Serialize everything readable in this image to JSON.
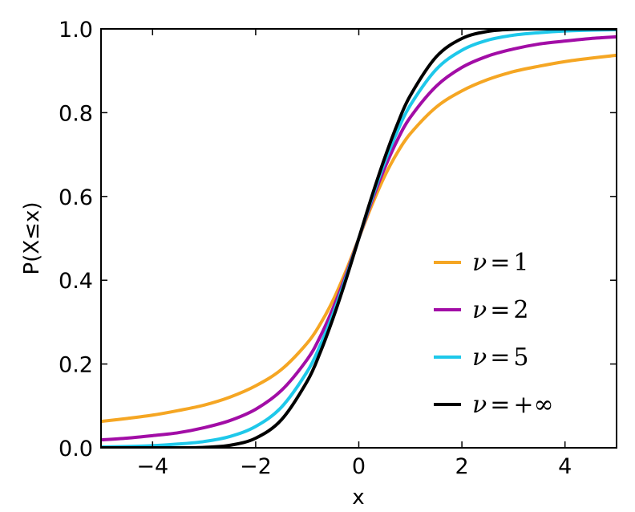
{
  "chart_data": {
    "type": "line",
    "title": "",
    "xlabel": "x",
    "ylabel": "P(X≤x)",
    "xlim": [
      -5,
      5
    ],
    "ylim": [
      0,
      1
    ],
    "xticks": [
      -4,
      -2,
      0,
      2,
      4
    ],
    "xtick_labels": [
      "−4",
      "−2",
      "0",
      "2",
      "4"
    ],
    "yticks": [
      0,
      0.2,
      0.4,
      0.6,
      0.8,
      1
    ],
    "ytick_labels": [
      "0.0",
      "0.2",
      "0.4",
      "0.6",
      "0.8",
      "1.0"
    ],
    "grid": false,
    "legend_position": "lower-right",
    "x": [
      -5,
      -4.5,
      -4,
      -3.5,
      -3,
      -2.5,
      -2,
      -1.5,
      -1,
      -0.75,
      -0.5,
      -0.25,
      0,
      0.25,
      0.5,
      0.75,
      1,
      1.5,
      2,
      2.5,
      3,
      3.5,
      4,
      4.5,
      5
    ],
    "series": [
      {
        "name": "ν = 1",
        "legend_var": "ν",
        "legend_op": "=",
        "legend_value": "1",
        "color": "#f5a623",
        "values": [
          0.063,
          0.07,
          0.078,
          0.089,
          0.102,
          0.121,
          0.148,
          0.187,
          0.25,
          0.295,
          0.352,
          0.422,
          0.5,
          0.578,
          0.648,
          0.705,
          0.75,
          0.813,
          0.852,
          0.879,
          0.898,
          0.911,
          0.922,
          0.93,
          0.937
        ]
      },
      {
        "name": "ν = 2",
        "legend_var": "ν",
        "legend_op": "=",
        "legend_value": "2",
        "color": "#a20da6",
        "values": [
          0.019,
          0.023,
          0.029,
          0.036,
          0.048,
          0.065,
          0.092,
          0.137,
          0.211,
          0.265,
          0.333,
          0.412,
          0.5,
          0.588,
          0.667,
          0.735,
          0.789,
          0.863,
          0.908,
          0.935,
          0.952,
          0.964,
          0.971,
          0.977,
          0.981
        ]
      },
      {
        "name": "ν = 5",
        "legend_var": "ν",
        "legend_op": "=",
        "legend_value": "5",
        "color": "#1ec8ea",
        "values": [
          0.002,
          0.003,
          0.005,
          0.009,
          0.015,
          0.027,
          0.051,
          0.097,
          0.182,
          0.244,
          0.319,
          0.406,
          0.5,
          0.594,
          0.681,
          0.756,
          0.818,
          0.903,
          0.949,
          0.973,
          0.985,
          0.991,
          0.995,
          0.997,
          0.998
        ]
      },
      {
        "name": "ν = +∞",
        "legend_var": "ν",
        "legend_op": "=",
        "legend_value": "+∞",
        "color": "#000000",
        "values": [
          0.0,
          0.0,
          0.0,
          0.0,
          0.001,
          0.006,
          0.023,
          0.067,
          0.159,
          0.227,
          0.309,
          0.401,
          0.5,
          0.599,
          0.691,
          0.773,
          0.841,
          0.933,
          0.977,
          0.994,
          0.999,
          1.0,
          1.0,
          1.0,
          1.0
        ]
      }
    ]
  }
}
